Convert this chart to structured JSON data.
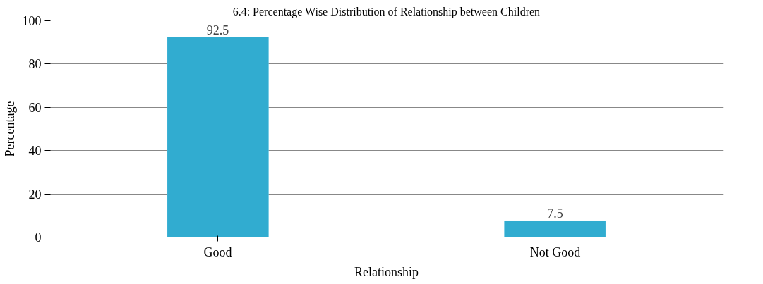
{
  "chart_data": {
    "type": "bar",
    "title": "6.4: Percentage Wise Distribution of Relationship between Children",
    "xlabel": "Relationship",
    "ylabel": "Percentage",
    "categories": [
      "Good",
      "Not Good"
    ],
    "series": [
      {
        "color": "#31acd0",
        "values": [
          92.5,
          7.5
        ]
      }
    ],
    "data_labels": true,
    "ylim": [
      0,
      100
    ],
    "yticks": [
      0,
      20,
      40,
      60,
      80,
      100
    ],
    "grid": "y"
  }
}
